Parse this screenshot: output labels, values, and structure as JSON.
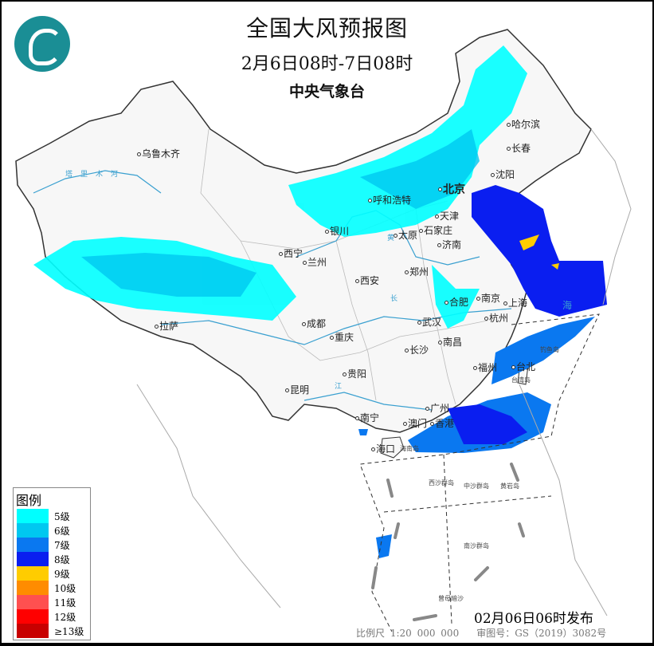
{
  "header": {
    "title": "全国大风预报图",
    "subtitle": "2月6日08时-7日08时",
    "issuer": "中央气象台"
  },
  "legend": {
    "title": "图例",
    "items": [
      {
        "label": "5级",
        "color": "#00ffff"
      },
      {
        "label": "6级",
        "color": "#00c8f0"
      },
      {
        "label": "7级",
        "color": "#0a78f0"
      },
      {
        "label": "8级",
        "color": "#0a1ef0"
      },
      {
        "label": "9级",
        "color": "#ffcc00"
      },
      {
        "label": "10级",
        "color": "#ff8c00"
      },
      {
        "label": "11级",
        "color": "#ff5050"
      },
      {
        "label": "12级",
        "color": "#ff0000"
      },
      {
        "label": "≥13级",
        "color": "#c80000"
      }
    ]
  },
  "cities": [
    "乌鲁木齐",
    "哈尔滨",
    "长春",
    "沈阳",
    "北京",
    "天津",
    "呼和浩特",
    "银川",
    "太原",
    "石家庄",
    "济南",
    "西宁",
    "兰州",
    "郑州",
    "西安",
    "合肥",
    "南京",
    "上海",
    "拉萨",
    "成都",
    "武汉",
    "杭州",
    "重庆",
    "长沙",
    "南昌",
    "福州",
    "台北",
    "贵阳",
    "昆明",
    "广州",
    "澳门",
    "香港",
    "南宁",
    "海口"
  ],
  "places": [
    "钓鱼岛",
    "台湾岛",
    "海南岛",
    "西沙群岛",
    "中沙群岛",
    "黄岩岛",
    "南沙群岛",
    "曾母暗沙"
  ],
  "rivers": [
    "塔里木河",
    "长",
    "黄",
    "江",
    "海"
  ],
  "footer": {
    "issued": "02月06日06时发布",
    "scale": "比例尺 1:20 000 000",
    "approval": "审图号：GS（2019）3082号"
  }
}
